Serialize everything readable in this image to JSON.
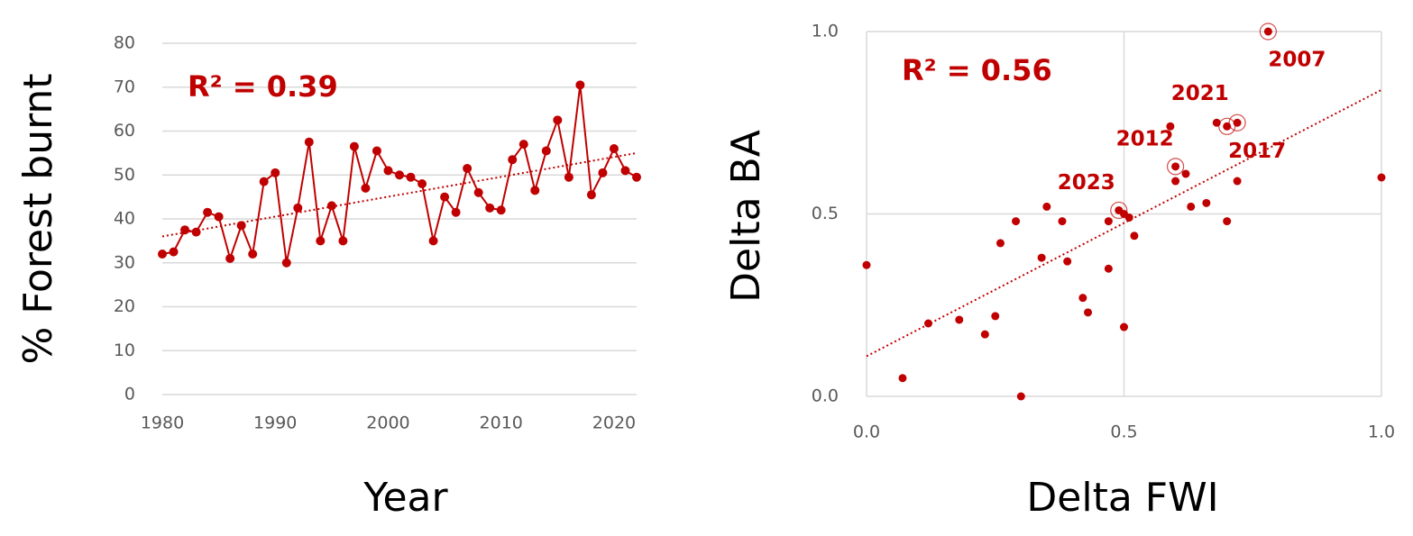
{
  "chart_data": [
    {
      "type": "line",
      "x": [
        1980,
        1981,
        1982,
        1983,
        1984,
        1985,
        1986,
        1987,
        1988,
        1989,
        1990,
        1991,
        1992,
        1993,
        1994,
        1995,
        1996,
        1997,
        1998,
        1999,
        2000,
        2001,
        2002,
        2003,
        2004,
        2005,
        2006,
        2007,
        2008,
        2009,
        2010,
        2011,
        2012,
        2013,
        2014,
        2015,
        2016,
        2017,
        2018,
        2019,
        2020,
        2021,
        2022
      ],
      "values": [
        32,
        32.5,
        37.5,
        37,
        41.5,
        40.5,
        31,
        38.5,
        32,
        48.5,
        50.5,
        30,
        42.5,
        57.5,
        35,
        43,
        35,
        56.5,
        47,
        55.5,
        51,
        50,
        49.5,
        48,
        35,
        45,
        41.5,
        51.5,
        46,
        42.5,
        42,
        53.5,
        57,
        46.5,
        55.5,
        62.5,
        49.5,
        70.5,
        45.5,
        50.5,
        56,
        51,
        49.5
      ],
      "color": "#c00000",
      "trend": {
        "x": [
          1980,
          2022
        ],
        "y": [
          36,
          55
        ]
      },
      "annotation": "R² = 0.39",
      "x_label": "Year",
      "y_label": "% Forest burnt",
      "xlim": [
        1980,
        2022
      ],
      "xticks": [
        1980,
        1990,
        2000,
        2010,
        2020
      ],
      "ylim": [
        0,
        80
      ],
      "yticks": [
        0,
        10,
        20,
        30,
        40,
        50,
        60,
        70,
        80
      ],
      "grid": true
    },
    {
      "type": "scatter",
      "x": [
        0,
        0.07,
        0.12,
        0.18,
        0.23,
        0.25,
        0.26,
        0.29,
        0.3,
        0.34,
        0.35,
        0.38,
        0.39,
        0.42,
        0.43,
        0.47,
        0.47,
        0.49,
        0.5,
        0.5,
        0.51,
        0.52,
        0.59,
        0.6,
        0.6,
        0.62,
        0.63,
        0.66,
        0.68,
        0.7,
        0.7,
        0.72,
        0.72,
        0.78,
        1.0
      ],
      "y": [
        0.36,
        0.05,
        0.2,
        0.21,
        0.17,
        0.22,
        0.42,
        0.48,
        0.0,
        0.38,
        0.52,
        0.48,
        0.37,
        0.27,
        0.23,
        0.48,
        0.35,
        0.51,
        0.19,
        0.5,
        0.49,
        0.44,
        0.74,
        0.63,
        0.59,
        0.61,
        0.52,
        0.53,
        0.75,
        0.74,
        0.48,
        0.59,
        0.75,
        1.0,
        0.6
      ],
      "color": "#c00000",
      "highlights": [
        {
          "label": "2007",
          "x": 0.78,
          "y": 1.0
        },
        {
          "label": "2021",
          "x": 0.7,
          "y": 0.74
        },
        {
          "label": "2017",
          "x": 0.72,
          "y": 0.75
        },
        {
          "label": "2012",
          "x": 0.6,
          "y": 0.63
        },
        {
          "label": "2023",
          "x": 0.49,
          "y": 0.51
        }
      ],
      "trend": {
        "x": [
          0,
          1
        ],
        "y": [
          0.11,
          0.84
        ]
      },
      "annotation": "R² = 0.56",
      "x_label": "Delta FWI",
      "y_label": "Delta BA",
      "xlim": [
        0,
        1
      ],
      "xticks": [
        {
          "value": 0,
          "label": "0.0"
        },
        0.5,
        {
          "value": 1,
          "label": "1.0"
        }
      ],
      "ylim": [
        0,
        1
      ],
      "yticks": [
        {
          "value": 0,
          "label": "0.0"
        },
        0.5,
        {
          "value": 1,
          "label": "1.0"
        }
      ],
      "grid": true
    }
  ]
}
